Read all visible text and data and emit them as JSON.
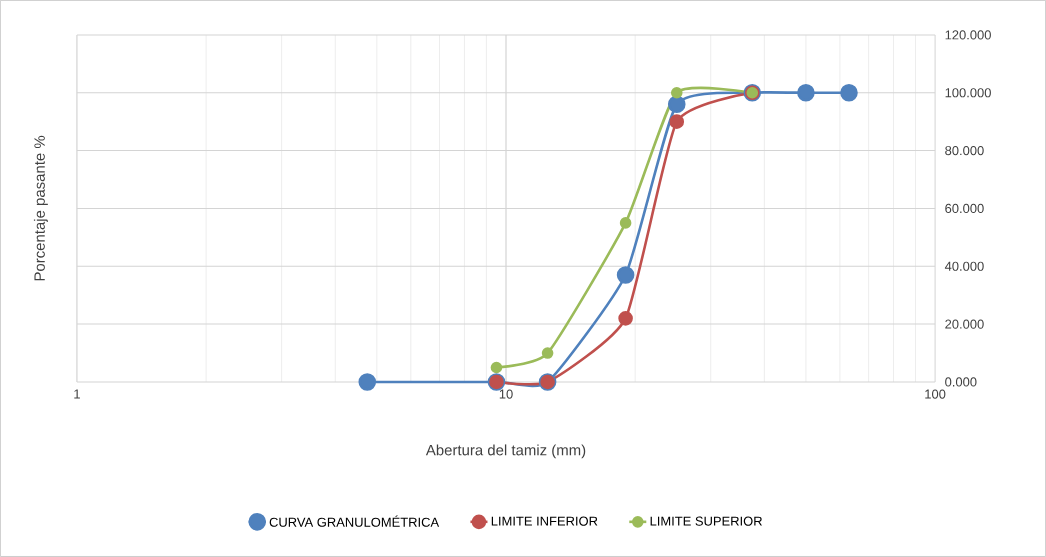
{
  "chart_data": {
    "type": "line",
    "xlabel": "Abertura del tamiz (mm)",
    "ylabel": "Porcentaje pasante %",
    "log": "x",
    "xlim": [
      1,
      100
    ],
    "xticks": [
      1,
      10,
      100
    ],
    "ylim": [
      0,
      120
    ],
    "yticks": [
      {
        "value": 0,
        "label": "0.000"
      },
      {
        "value": 20,
        "label": "20.000"
      },
      {
        "value": 40,
        "label": "40.000"
      },
      {
        "value": 60,
        "label": "60.000"
      },
      {
        "value": 80,
        "label": "80.000"
      },
      {
        "value": 100,
        "label": "100.000"
      },
      {
        "value": 120,
        "label": "120.000"
      }
    ],
    "grid": true,
    "legend": "bottom",
    "marker": "circle",
    "line_style": "solid",
    "series": [
      {
        "name": "CURVA GRANULOMÉTRICA",
        "color": "#4f81bd",
        "x": [
          4.75,
          9.5,
          12.5,
          19,
          25,
          37.5,
          50,
          63
        ],
        "values": [
          0,
          0,
          0,
          37,
          96,
          100,
          100,
          100
        ]
      },
      {
        "name": "LIMITE INFERIOR",
        "color": "#c0504d",
        "x": [
          9.5,
          12.5,
          19,
          25,
          37.5
        ],
        "values": [
          0,
          0,
          22,
          90,
          100
        ]
      },
      {
        "name": "LIMITE SUPERIOR",
        "color": "#9bbb59",
        "x": [
          9.5,
          12.5,
          19,
          25,
          37.5
        ],
        "values": [
          5,
          10,
          55,
          100,
          100
        ]
      }
    ]
  }
}
